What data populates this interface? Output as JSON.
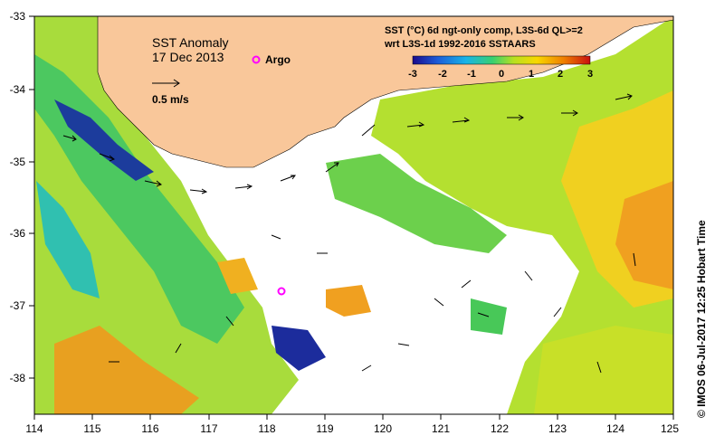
{
  "map": {
    "title": "SST Anomaly",
    "date": "17 Dec 2013",
    "argo_label": "Argo",
    "vector_scale_label": "0.5 m/s",
    "legend_line1": "SST (°C) 6d ngt-only comp, L3S-6d QL>=2",
    "legend_line2": "wrt L3S-1d 1992-2016 SSTAARS",
    "colorbar_ticks": [
      "-3",
      "-2",
      "-1",
      "0",
      "1",
      "2",
      "3"
    ],
    "credit": "© IMOS 06-Jul-2017 12:25 Hobart Time",
    "x_ticks": [
      "114",
      "115",
      "116",
      "117",
      "118",
      "119",
      "120",
      "121",
      "122",
      "123",
      "124",
      "125"
    ],
    "y_ticks": [
      "-33",
      "-34",
      "-35",
      "-36",
      "-37",
      "-38"
    ],
    "colors": {
      "land": "#f9c79a",
      "argo": "#ff00ff",
      "colorbar": [
        "#1a0a8c",
        "#1c5cd8",
        "#18b4e8",
        "#38d070",
        "#b8e020",
        "#f8d800",
        "#f08000",
        "#c81010"
      ]
    }
  }
}
